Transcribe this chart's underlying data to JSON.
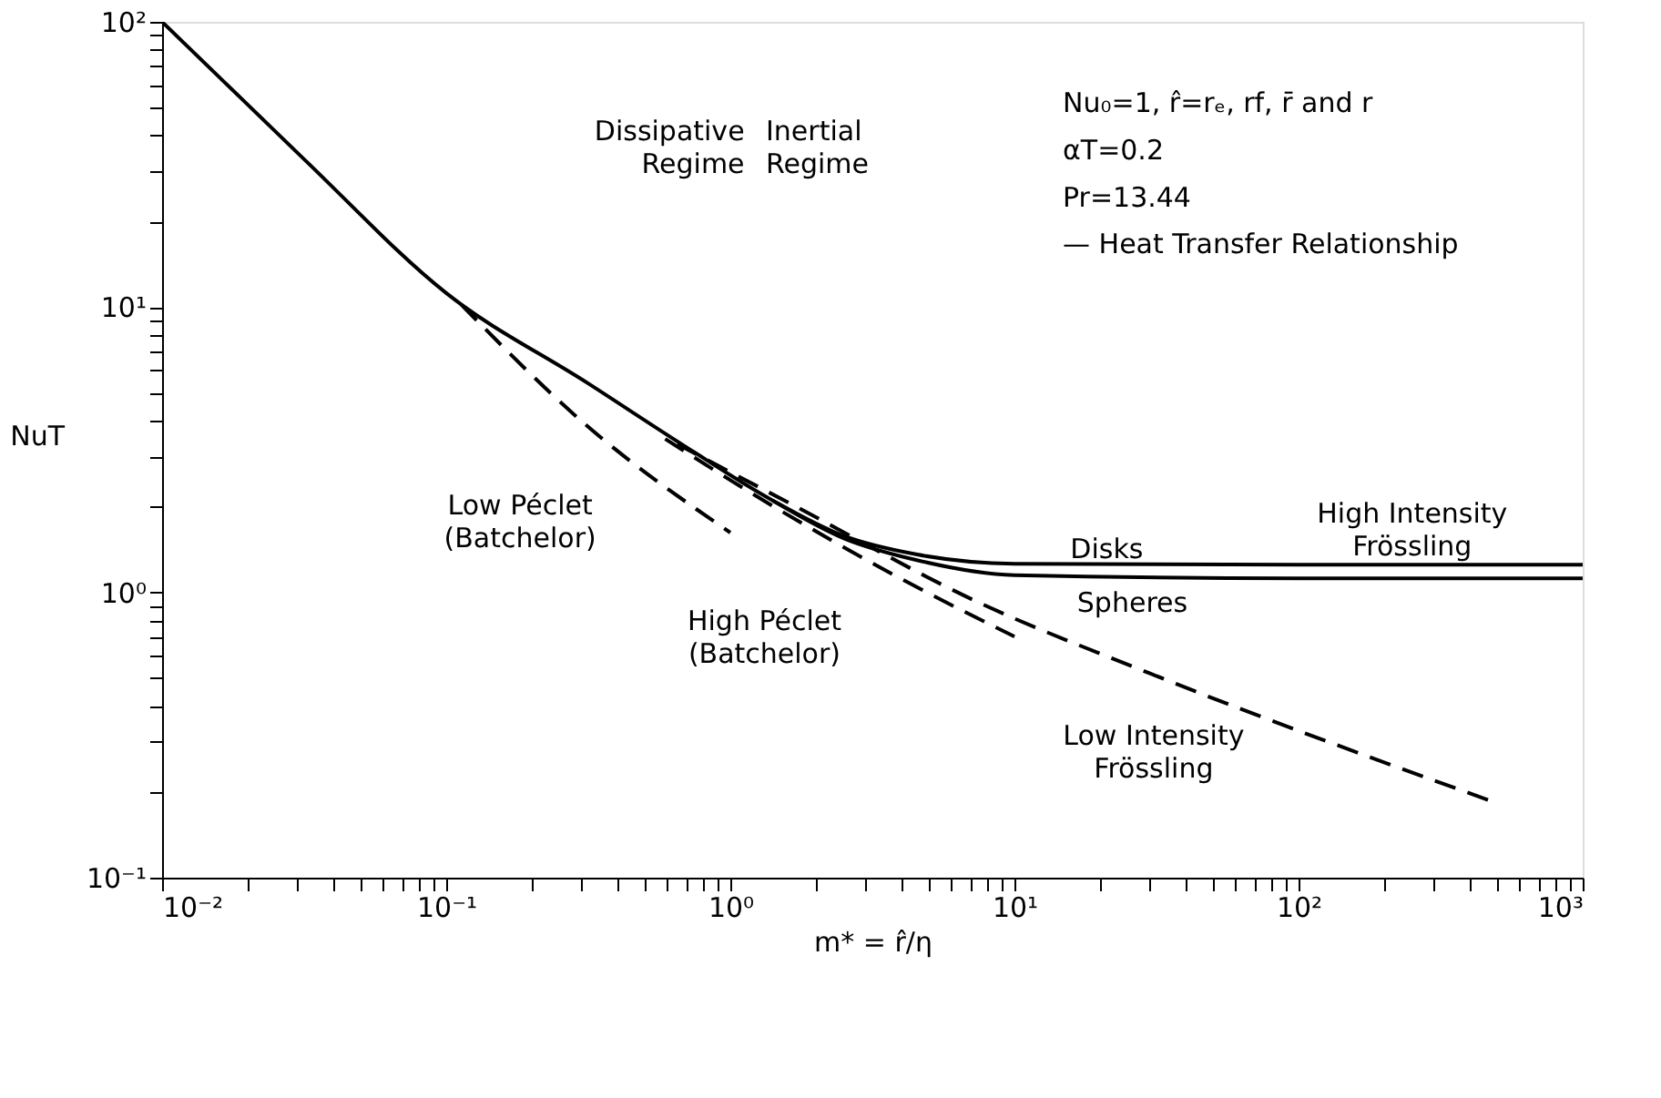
{
  "chart_data": {
    "type": "line",
    "log": "xy",
    "grid": false,
    "xlabel": "m* = r̂/η",
    "ylabel": "NuT",
    "xlim": [
      0.01,
      1000
    ],
    "ylim": [
      0.1,
      100
    ],
    "xticks": [
      {
        "value": 0.01,
        "label": "10⁻²"
      },
      {
        "value": 0.02,
        "label": null
      },
      {
        "value": 0.03,
        "label": null
      },
      {
        "value": 0.04,
        "label": null
      },
      {
        "value": 0.05,
        "label": null
      },
      {
        "value": 0.06,
        "label": null
      },
      {
        "value": 0.07,
        "label": null
      },
      {
        "value": 0.08,
        "label": null
      },
      {
        "value": 0.09,
        "label": null
      },
      {
        "value": 0.1,
        "label": "10⁻¹"
      },
      {
        "value": 0.2,
        "label": null
      },
      {
        "value": 0.3,
        "label": null
      },
      {
        "value": 0.4,
        "label": null
      },
      {
        "value": 0.5,
        "label": null
      },
      {
        "value": 0.6,
        "label": null
      },
      {
        "value": 0.7,
        "label": null
      },
      {
        "value": 0.8,
        "label": null
      },
      {
        "value": 0.9,
        "label": null
      },
      {
        "value": 1,
        "label": "10⁰"
      },
      {
        "value": 2,
        "label": null
      },
      {
        "value": 3,
        "label": null
      },
      {
        "value": 4,
        "label": null
      },
      {
        "value": 5,
        "label": null
      },
      {
        "value": 6,
        "label": null
      },
      {
        "value": 7,
        "label": null
      },
      {
        "value": 8,
        "label": null
      },
      {
        "value": 9,
        "label": null
      },
      {
        "value": 10,
        "label": "10¹"
      },
      {
        "value": 20,
        "label": null
      },
      {
        "value": 30,
        "label": null
      },
      {
        "value": 40,
        "label": null
      },
      {
        "value": 50,
        "label": null
      },
      {
        "value": 60,
        "label": null
      },
      {
        "value": 70,
        "label": null
      },
      {
        "value": 80,
        "label": null
      },
      {
        "value": 90,
        "label": null
      },
      {
        "value": 100,
        "label": "10²"
      },
      {
        "value": 200,
        "label": null
      },
      {
        "value": 300,
        "label": null
      },
      {
        "value": 400,
        "label": null
      },
      {
        "value": 500,
        "label": null
      },
      {
        "value": 600,
        "label": null
      },
      {
        "value": 700,
        "label": null
      },
      {
        "value": 800,
        "label": null
      },
      {
        "value": 900,
        "label": null
      },
      {
        "value": 1000,
        "label": "10³"
      }
    ],
    "yticks": [
      {
        "value": 0.1,
        "label": "10⁻¹"
      },
      {
        "value": 0.2,
        "label": null
      },
      {
        "value": 0.3,
        "label": null
      },
      {
        "value": 0.4,
        "label": null
      },
      {
        "value": 0.5,
        "label": null
      },
      {
        "value": 0.6,
        "label": null
      },
      {
        "value": 0.7,
        "label": null
      },
      {
        "value": 0.8,
        "label": null
      },
      {
        "value": 0.9,
        "label": null
      },
      {
        "value": 1,
        "label": "10⁰"
      },
      {
        "value": 2,
        "label": null
      },
      {
        "value": 3,
        "label": null
      },
      {
        "value": 4,
        "label": null
      },
      {
        "value": 5,
        "label": null
      },
      {
        "value": 6,
        "label": null
      },
      {
        "value": 7,
        "label": null
      },
      {
        "value": 8,
        "label": null
      },
      {
        "value": 9,
        "label": null
      },
      {
        "value": 10,
        "label": "10¹"
      },
      {
        "value": 20,
        "label": null
      },
      {
        "value": 30,
        "label": null
      },
      {
        "value": 40,
        "label": null
      },
      {
        "value": 50,
        "label": null
      },
      {
        "value": 60,
        "label": null
      },
      {
        "value": 70,
        "label": null
      },
      {
        "value": 80,
        "label": null
      },
      {
        "value": 90,
        "label": null
      },
      {
        "value": 100,
        "label": "10²"
      }
    ],
    "series": [
      {
        "color": "#000000",
        "line_style": "solid",
        "x": [
          0.01,
          0.0316,
          0.1,
          0.316,
          0.71,
          1.41,
          2.5,
          4.5,
          10,
          100,
          1000
        ],
        "values": [
          100,
          33,
          11.2,
          5.4,
          3.2,
          2.1,
          1.58,
          1.36,
          1.26,
          1.25,
          1.25
        ]
      },
      {
        "color": "#000000",
        "line_style": "solid",
        "x": [
          1.41,
          2.5,
          4.5,
          10,
          100,
          1000
        ],
        "values": [
          2.1,
          1.55,
          1.3,
          1.15,
          1.12,
          1.12
        ]
      },
      {
        "color": "#000000",
        "line_style": "dashed",
        "x": [
          0.113,
          0.307,
          1.0
        ],
        "values": [
          10.2,
          3.9,
          1.62
        ]
      },
      {
        "color": "#000000",
        "line_style": "dashed",
        "x": [
          0.59,
          1.33,
          3.9,
          10
        ],
        "values": [
          3.45,
          2.08,
          1.13,
          0.7
        ]
      },
      {
        "color": "#000000",
        "line_style": "dashed",
        "x": [
          0.65,
          1.7,
          7.26,
          30,
          488
        ],
        "values": [
          3.31,
          2.0,
          0.935,
          0.52,
          0.184
        ]
      }
    ],
    "annotations": [
      "Dissipative\nRegime",
      "Inertial\nRegime",
      "Low Péclet\n(Batchelor)",
      "High Péclet\n(Batchelor)",
      "Disks",
      "Spheres",
      "Low Intensity\nFrössling",
      "High Intensity\nFrössling",
      "Nu₀=1, r̂=rₑ, rf, r̄ and r",
      "αT=0.2",
      "Pr=13.44",
      "— Heat Transfer Relationship"
    ]
  }
}
